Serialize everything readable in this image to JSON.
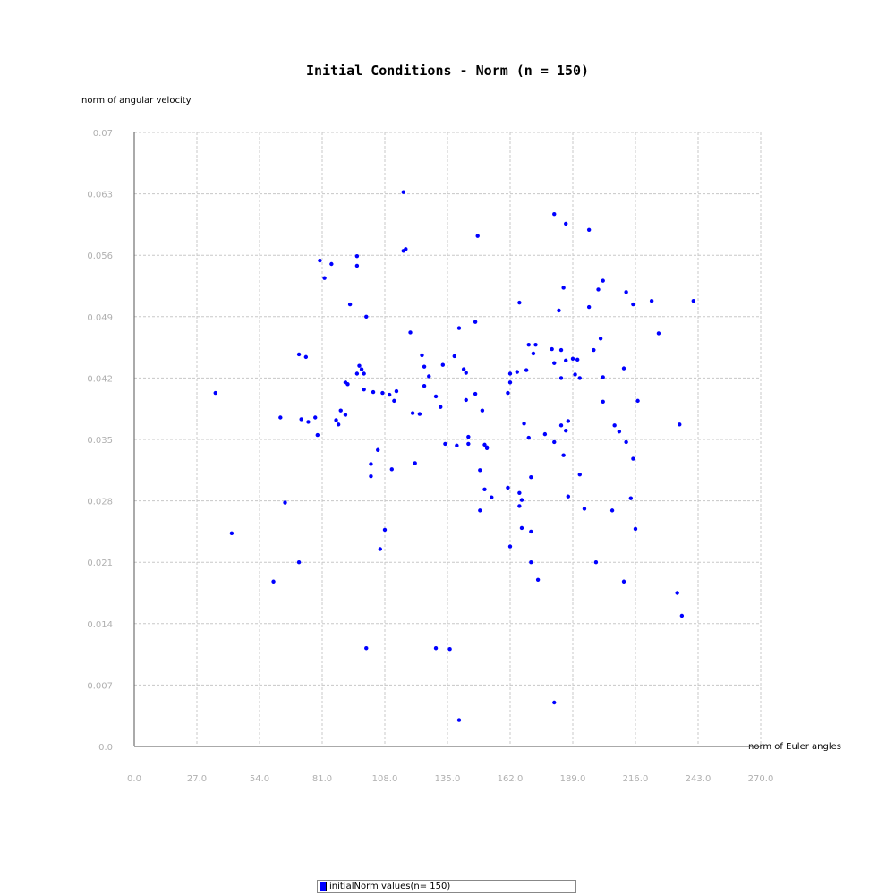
{
  "chart_data": {
    "type": "scatter",
    "title": "Initial Conditions - Norm (n = 150)",
    "xlabel": "norm of Euler angles",
    "ylabel": "norm of angular velocity",
    "xlim": [
      0,
      270
    ],
    "ylim": [
      0,
      0.07
    ],
    "x_ticks": [
      "0.0",
      "27.0",
      "54.0",
      "81.0",
      "108.0",
      "135.0",
      "162.0",
      "189.0",
      "216.0",
      "243.0",
      "270.0"
    ],
    "y_ticks": [
      "0.0",
      "0.007",
      "0.014",
      "0.021",
      "0.028",
      "0.035",
      "0.042",
      "0.049",
      "0.056",
      "0.063",
      "0.07"
    ],
    "grid": true,
    "legend_position": "bottom",
    "series": [
      {
        "name": "initialNorm values(n= 150)",
        "color": "#0000ff",
        "points": [
          [
            35,
            0.0403
          ],
          [
            42,
            0.0243
          ],
          [
            60,
            0.0188
          ],
          [
            63,
            0.0375
          ],
          [
            65,
            0.0278
          ],
          [
            71,
            0.0447
          ],
          [
            71,
            0.021
          ],
          [
            72,
            0.0373
          ],
          [
            74,
            0.0444
          ],
          [
            75,
            0.037
          ],
          [
            78,
            0.0375
          ],
          [
            79,
            0.0355
          ],
          [
            80,
            0.0554
          ],
          [
            82,
            0.0534
          ],
          [
            85,
            0.055
          ],
          [
            87,
            0.0372
          ],
          [
            88,
            0.0367
          ],
          [
            89,
            0.0383
          ],
          [
            91,
            0.0378
          ],
          [
            91,
            0.0415
          ],
          [
            92,
            0.0413
          ],
          [
            93,
            0.0504
          ],
          [
            96,
            0.0559
          ],
          [
            96,
            0.0548
          ],
          [
            96,
            0.0425
          ],
          [
            97,
            0.0434
          ],
          [
            98,
            0.043
          ],
          [
            99,
            0.0425
          ],
          [
            99,
            0.0407
          ],
          [
            100,
            0.049
          ],
          [
            100,
            0.0112
          ],
          [
            102,
            0.0308
          ],
          [
            102,
            0.0322
          ],
          [
            103,
            0.0404
          ],
          [
            105,
            0.0338
          ],
          [
            106,
            0.0225
          ],
          [
            107,
            0.0403
          ],
          [
            108,
            0.0247
          ],
          [
            110,
            0.0401
          ],
          [
            111,
            0.0316
          ],
          [
            112,
            0.0394
          ],
          [
            113,
            0.0405
          ],
          [
            116,
            0.0565
          ],
          [
            116,
            0.0632
          ],
          [
            117,
            0.0567
          ],
          [
            119,
            0.0472
          ],
          [
            120,
            0.038
          ],
          [
            121,
            0.0323
          ],
          [
            123,
            0.0379
          ],
          [
            124,
            0.0446
          ],
          [
            125,
            0.0433
          ],
          [
            125,
            0.0411
          ],
          [
            127,
            0.0422
          ],
          [
            130,
            0.0399
          ],
          [
            130,
            0.0112
          ],
          [
            132,
            0.0387
          ],
          [
            133,
            0.0435
          ],
          [
            134,
            0.0345
          ],
          [
            136,
            0.0111
          ],
          [
            138,
            0.0445
          ],
          [
            139,
            0.0343
          ],
          [
            140,
            0.0477
          ],
          [
            140,
            0.003
          ],
          [
            142,
            0.043
          ],
          [
            143,
            0.0426
          ],
          [
            143,
            0.0395
          ],
          [
            144,
            0.0353
          ],
          [
            144,
            0.0345
          ],
          [
            147,
            0.0484
          ],
          [
            147,
            0.0402
          ],
          [
            148,
            0.0582
          ],
          [
            149,
            0.0269
          ],
          [
            149,
            0.0315
          ],
          [
            150,
            0.0383
          ],
          [
            151,
            0.0344
          ],
          [
            151,
            0.0293
          ],
          [
            152,
            0.034
          ],
          [
            152,
            0.0341
          ],
          [
            154,
            0.0284
          ],
          [
            161,
            0.0403
          ],
          [
            161,
            0.0295
          ],
          [
            162,
            0.0425
          ],
          [
            162,
            0.0415
          ],
          [
            162,
            0.0228
          ],
          [
            165,
            0.0427
          ],
          [
            166,
            0.0289
          ],
          [
            166,
            0.0506
          ],
          [
            166,
            0.0274
          ],
          [
            167,
            0.0281
          ],
          [
            167,
            0.0249
          ],
          [
            168,
            0.0368
          ],
          [
            169,
            0.0429
          ],
          [
            170,
            0.0352
          ],
          [
            170,
            0.0458
          ],
          [
            171,
            0.0307
          ],
          [
            171,
            0.0245
          ],
          [
            171,
            0.021
          ],
          [
            172,
            0.0448
          ],
          [
            173,
            0.0458
          ],
          [
            174,
            0.019
          ],
          [
            177,
            0.0356
          ],
          [
            180,
            0.0453
          ],
          [
            181,
            0.0347
          ],
          [
            181,
            0.0437
          ],
          [
            181,
            0.005
          ],
          [
            181,
            0.0607
          ],
          [
            183,
            0.0497
          ],
          [
            184,
            0.042
          ],
          [
            184,
            0.0366
          ],
          [
            184,
            0.0452
          ],
          [
            185,
            0.0332
          ],
          [
            185,
            0.0523
          ],
          [
            186,
            0.0596
          ],
          [
            186,
            0.044
          ],
          [
            186,
            0.036
          ],
          [
            187,
            0.0371
          ],
          [
            187,
            0.0285
          ],
          [
            189,
            0.0442
          ],
          [
            190,
            0.0424
          ],
          [
            191,
            0.0441
          ],
          [
            192,
            0.042
          ],
          [
            192,
            0.031
          ],
          [
            194,
            0.0271
          ],
          [
            196,
            0.0501
          ],
          [
            196,
            0.0589
          ],
          [
            198,
            0.0452
          ],
          [
            199,
            0.021
          ],
          [
            200,
            0.0521
          ],
          [
            201,
            0.0465
          ],
          [
            202,
            0.0531
          ],
          [
            202,
            0.0421
          ],
          [
            202,
            0.0393
          ],
          [
            206,
            0.0269
          ],
          [
            207,
            0.0366
          ],
          [
            209,
            0.0359
          ],
          [
            211,
            0.0188
          ],
          [
            211,
            0.0431
          ],
          [
            212,
            0.0347
          ],
          [
            212,
            0.0518
          ],
          [
            214,
            0.0283
          ],
          [
            215,
            0.0504
          ],
          [
            215,
            0.0328
          ],
          [
            216,
            0.0248
          ],
          [
            217,
            0.0394
          ],
          [
            223,
            0.0508
          ],
          [
            226,
            0.0471
          ],
          [
            234,
            0.0175
          ],
          [
            235,
            0.0367
          ],
          [
            236,
            0.0149
          ],
          [
            241,
            0.0508
          ]
        ]
      }
    ]
  }
}
